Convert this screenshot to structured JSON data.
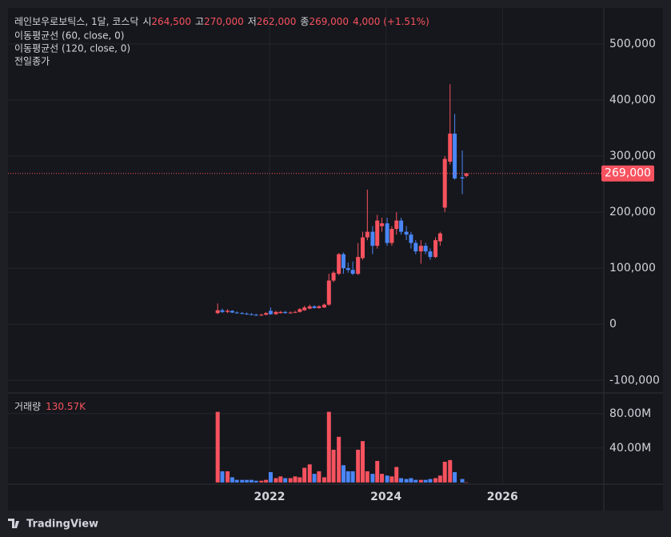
{
  "chart_data": [
    {
      "type": "candlestick",
      "legend": {
        "symbol": "레인보우로보틱스, 1달, 코스닥",
        "ohlc": [
          {
            "label": "시",
            "value": "264,500"
          },
          {
            "label": "고",
            "value": "270,000"
          },
          {
            "label": "저",
            "value": "262,000"
          },
          {
            "label": "종",
            "value": "269,000"
          }
        ],
        "change": "4,000 (+1.51%)"
      },
      "indicators": [
        "이동평균선 (60, close, 0)",
        "이동평균선 (120, close, 0)",
        "전일종가"
      ],
      "up_color": "#f7525f",
      "down_color": "#4a86f7",
      "grid": true,
      "x": [
        2021.11,
        2021.19,
        2021.28,
        2021.36,
        2021.44,
        2021.53,
        2021.61,
        2021.69,
        2021.77,
        2021.86,
        2021.94,
        2022.02,
        2022.11,
        2022.19,
        2022.27,
        2022.36,
        2022.44,
        2022.52,
        2022.6,
        2022.69,
        2022.77,
        2022.85,
        2022.94,
        2023.02,
        2023.1,
        2023.19,
        2023.27,
        2023.35,
        2023.43,
        2023.52,
        2023.6,
        2023.68,
        2023.77,
        2023.85,
        2023.93,
        2024.02,
        2024.1,
        2024.18,
        2024.26,
        2024.35,
        2024.43,
        2024.51,
        2024.6,
        2024.68,
        2024.76,
        2024.85,
        2024.93,
        2025.01,
        2025.1,
        2025.18,
        2025.31,
        2025.38
      ],
      "open": [
        20000,
        25000,
        22000,
        24000,
        21000,
        20000,
        19000,
        18000,
        17000,
        16000,
        17000,
        24000,
        18000,
        20000,
        22000,
        20000,
        21000,
        22000,
        25000,
        28000,
        32000,
        29000,
        30000,
        35000,
        78000,
        90000,
        125000,
        100000,
        97000,
        90000,
        118000,
        155000,
        165000,
        140000,
        175000,
        180000,
        145000,
        170000,
        185000,
        165000,
        160000,
        145000,
        130000,
        140000,
        130000,
        120000,
        148000,
        208000,
        290000,
        340000,
        262000,
        264500
      ],
      "high": [
        37000,
        28000,
        27000,
        25000,
        23000,
        22000,
        21000,
        20000,
        19000,
        19000,
        22000,
        30000,
        24000,
        24000,
        24000,
        23000,
        24000,
        29000,
        33000,
        35000,
        34000,
        34000,
        37000,
        90000,
        95000,
        127000,
        128000,
        110000,
        112000,
        145000,
        165000,
        240000,
        175000,
        195000,
        190000,
        190000,
        175000,
        200000,
        190000,
        175000,
        165000,
        150000,
        150000,
        145000,
        135000,
        155000,
        165000,
        300000,
        428000,
        375000,
        310000,
        270000
      ],
      "low": [
        18000,
        20000,
        20000,
        20000,
        19000,
        18000,
        17000,
        16000,
        15000,
        15000,
        16000,
        17000,
        17000,
        19000,
        19000,
        19000,
        20000,
        21000,
        24000,
        27000,
        28000,
        28000,
        29000,
        33000,
        75000,
        88000,
        90000,
        92000,
        88000,
        88000,
        115000,
        150000,
        125000,
        135000,
        165000,
        140000,
        140000,
        160000,
        160000,
        150000,
        135000,
        125000,
        108000,
        125000,
        115000,
        118000,
        140000,
        200000,
        285000,
        258000,
        232000,
        262000
      ],
      "close": [
        25000,
        22000,
        24000,
        21000,
        20000,
        19000,
        18000,
        17000,
        16000,
        17000,
        20000,
        18000,
        22000,
        22000,
        20000,
        21000,
        22000,
        27000,
        30000,
        32000,
        29000,
        32000,
        35000,
        78000,
        92000,
        125000,
        100000,
        97000,
        90000,
        120000,
        155000,
        165000,
        140000,
        185000,
        180000,
        145000,
        170000,
        185000,
        165000,
        160000,
        145000,
        130000,
        140000,
        130000,
        120000,
        150000,
        162000,
        295000,
        340000,
        260000,
        260000,
        269000
      ],
      "last_price": {
        "value": 269000,
        "label": "269,000"
      },
      "xlim": [
        2017.51,
        2027.74
      ],
      "ylim": [
        -121000,
        564000
      ],
      "yticks": [
        {
          "value": -100000,
          "label": "-100,000"
        },
        0,
        {
          "value": 100000,
          "label": "100,000"
        },
        {
          "value": 200000,
          "label": "200,000"
        },
        {
          "value": 300000,
          "label": "300,000"
        },
        {
          "value": 400000,
          "label": "400,000"
        },
        {
          "value": 500000,
          "label": "500,000"
        }
      ]
    },
    {
      "type": "bar",
      "title": "거래량",
      "value_label": "130.57K",
      "last_value": 130570,
      "values": [
        82000000,
        13000000,
        13000000,
        6000000,
        3000000,
        3000000,
        3000000,
        3000000,
        2000000,
        2000000,
        3000000,
        12000000,
        5000000,
        7000000,
        5000000,
        5000000,
        7000000,
        6000000,
        17000000,
        21000000,
        10000000,
        13000000,
        6000000,
        82000000,
        38000000,
        53000000,
        20000000,
        13000000,
        13000000,
        38000000,
        48000000,
        13000000,
        10000000,
        25000000,
        10000000,
        8000000,
        7000000,
        18000000,
        5000000,
        4000000,
        5000000,
        3000000,
        3000000,
        3000000,
        4000000,
        5000000,
        8000000,
        24000000,
        26000000,
        12000000,
        4000000,
        130570
      ],
      "xlim": [
        2017.51,
        2027.74
      ],
      "xticks": [
        2022,
        2024,
        2026
      ],
      "ylim": [
        -2000000,
        103000000
      ],
      "yticks": [
        {
          "value": 40000000,
          "label": "40.00M"
        },
        {
          "value": 80000000,
          "label": "80.00M"
        }
      ]
    }
  ],
  "footer": "TradingView"
}
